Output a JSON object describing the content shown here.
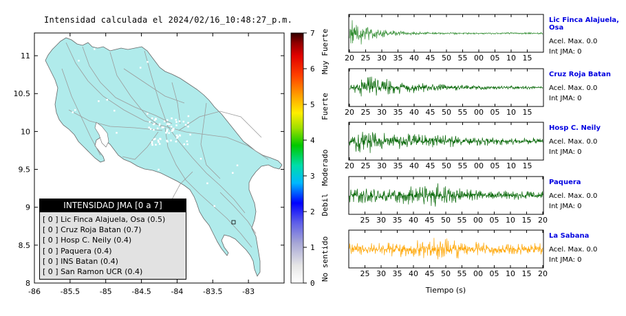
{
  "header": {
    "title": "Intensidad calculada el 2024/02/16_10:48:27_p.m."
  },
  "map": {
    "x_ticks": [
      "-86",
      "-85.5",
      "-85",
      "-84.5",
      "-84",
      "-83.5",
      "-83"
    ],
    "y_ticks": [
      "11",
      "10.5",
      "10",
      "9.5",
      "9",
      "8.5",
      "8"
    ],
    "land_color": "#b0ebeb",
    "road_color": "#999999"
  },
  "colorbar": {
    "ticks": [
      "7",
      "6",
      "5",
      "4",
      "3",
      "2",
      "1",
      "0"
    ],
    "category_labels": [
      "Muy Fuerte",
      "Fuerte",
      "Moderado",
      "Debil",
      "No sentido"
    ]
  },
  "legend": {
    "title": "INTENSIDAD JMA [0 a 7]",
    "items": [
      {
        "value": "[ 0 ]",
        "label": "Lic Finca Alajuela, Osa (0.5)"
      },
      {
        "value": "[ 0 ]",
        "label": "Cruz Roja Batan (0.7)"
      },
      {
        "value": "[ 0 ]",
        "label": "Hosp C. Neily (0.4)"
      },
      {
        "value": "[ 0 ]",
        "label": "Paquera (0.4)"
      },
      {
        "value": "[ 0 ]",
        "label": "INS Batan (0.4)"
      },
      {
        "value": "[ 0 ]",
        "label": "San Ramon UCR (0.4)"
      }
    ]
  },
  "stations": [
    {
      "name": "Lic Finca Alajuela, Osa",
      "acel": "Acel. Max. 0.0",
      "jma": "Int JMA: 0",
      "color": "#2e8b2e",
      "ticks": [
        "20",
        "25",
        "30",
        "35",
        "40",
        "45",
        "50",
        "55",
        "00",
        "05",
        "10",
        "15"
      ]
    },
    {
      "name": "Cruz Roja Batan",
      "acel": "Acel. Max. 0.0",
      "jma": "Int JMA: 0",
      "color": "#006400",
      "ticks": [
        "20",
        "25",
        "30",
        "35",
        "40",
        "45",
        "50",
        "55",
        "00",
        "05",
        "10",
        "15"
      ]
    },
    {
      "name": "Hosp C. Neily",
      "acel": "Acel. Max. 0.0",
      "jma": "Int JMA: 0",
      "color": "#006400",
      "ticks": [
        "20",
        "25",
        "30",
        "35",
        "40",
        "45",
        "50",
        "55",
        "00",
        "05",
        "10",
        "15"
      ]
    },
    {
      "name": "Paquera",
      "acel": "Acel. Max. 0.0",
      "jma": "Int JMA: 0",
      "color": "#006400",
      "ticks": [
        "25",
        "30",
        "35",
        "40",
        "45",
        "50",
        "55",
        "00",
        "05",
        "10",
        "15",
        "20"
      ]
    },
    {
      "name": "La Sabana",
      "acel": "Acel. Max. 0.0",
      "jma": "Int JMA: 0",
      "color": "#ffa500",
      "ticks": [
        "25",
        "30",
        "35",
        "40",
        "45",
        "50",
        "55",
        "00",
        "05",
        "10",
        "15",
        "20"
      ]
    }
  ],
  "xaxis_label": "Tiempo (s)",
  "chart_data": [
    {
      "type": "heatmap",
      "title": "Intensidad calculada el 2024/02/16_10:48:27_p.m.",
      "x_ticks": [
        -86,
        -85.5,
        -85,
        -84.5,
        -84,
        -83.5,
        -83
      ],
      "y_ticks": [
        11,
        10.5,
        10,
        9.5,
        9,
        8.5,
        8
      ],
      "xlim": [
        -86,
        -82.5
      ],
      "ylim": [
        8,
        11.3
      ],
      "colorbar_range": [
        0,
        7
      ],
      "colorbar_labels": [
        "No sentido",
        "Debil",
        "Moderado",
        "Fuerte",
        "Muy Fuerte"
      ],
      "legend_title": "INTENSIDAD JMA [0 a 7]",
      "stations": [
        {
          "name": "Lic Finca Alajuela, Osa",
          "intensity": 0.5
        },
        {
          "name": "Cruz Roja Batan",
          "intensity": 0.7
        },
        {
          "name": "Hosp C. Neily",
          "intensity": 0.4
        },
        {
          "name": "Paquera",
          "intensity": 0.4
        },
        {
          "name": "INS Batan",
          "intensity": 0.4
        },
        {
          "name": "San Ramon UCR",
          "intensity": 0.4
        }
      ]
    },
    {
      "type": "line",
      "xlabel": "Tiempo (s)",
      "series": [
        {
          "name": "Lic Finca Alajuela, Osa",
          "acel_max": 0.0,
          "int_jma": 0,
          "tick_labels": [
            "20",
            "25",
            "30",
            "35",
            "40",
            "45",
            "50",
            "55",
            "00",
            "05",
            "10",
            "15"
          ]
        },
        {
          "name": "Cruz Roja Batan",
          "acel_max": 0.0,
          "int_jma": 0,
          "tick_labels": [
            "20",
            "25",
            "30",
            "35",
            "40",
            "45",
            "50",
            "55",
            "00",
            "05",
            "10",
            "15"
          ]
        },
        {
          "name": "Hosp C. Neily",
          "acel_max": 0.0,
          "int_jma": 0,
          "tick_labels": [
            "20",
            "25",
            "30",
            "35",
            "40",
            "45",
            "50",
            "55",
            "00",
            "05",
            "10",
            "15"
          ]
        },
        {
          "name": "Paquera",
          "acel_max": 0.0,
          "int_jma": 0,
          "tick_labels": [
            "25",
            "30",
            "35",
            "40",
            "45",
            "50",
            "55",
            "00",
            "05",
            "10",
            "15",
            "20"
          ]
        },
        {
          "name": "La Sabana",
          "acel_max": 0.0,
          "int_jma": 0,
          "tick_labels": [
            "25",
            "30",
            "35",
            "40",
            "45",
            "50",
            "55",
            "00",
            "05",
            "10",
            "15",
            "20"
          ]
        }
      ]
    }
  ]
}
